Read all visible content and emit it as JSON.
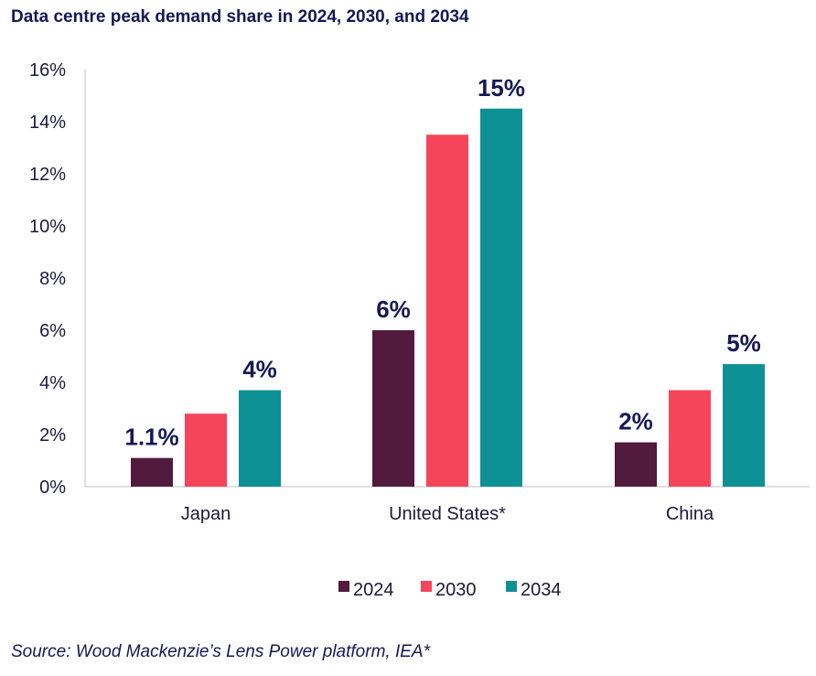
{
  "chart_data": {
    "type": "bar",
    "title": "Data centre peak demand share in 2024, 2030, and 2034",
    "categories": [
      "Japan",
      "United States*",
      "China"
    ],
    "series": [
      {
        "name": "2024",
        "color": "#521A3C",
        "values": [
          1.1,
          6.0,
          1.7
        ]
      },
      {
        "name": "2030",
        "color": "#F5455B",
        "values": [
          2.8,
          13.5,
          3.7
        ]
      },
      {
        "name": "2034",
        "color": "#0E9194",
        "values": [
          3.7,
          14.5,
          4.7
        ]
      }
    ],
    "data_labels": [
      {
        "category": 0,
        "series": 0,
        "text": "1.1%"
      },
      {
        "category": 0,
        "series": 2,
        "text": "4%"
      },
      {
        "category": 1,
        "series": 0,
        "text": "6%"
      },
      {
        "category": 1,
        "series": 2,
        "text": "15%"
      },
      {
        "category": 2,
        "series": 0,
        "text": "2%"
      },
      {
        "category": 2,
        "series": 2,
        "text": "5%"
      }
    ],
    "ylim": [
      0,
      16
    ],
    "yticks": [
      0,
      2,
      4,
      6,
      8,
      10,
      12,
      14,
      16
    ],
    "ytick_suffix": "%",
    "xlabel": "",
    "ylabel": "",
    "legend_position": "bottom-center",
    "grid": false,
    "source": "Source: Wood Mackenzie’s Lens Power platform, IEA*"
  }
}
